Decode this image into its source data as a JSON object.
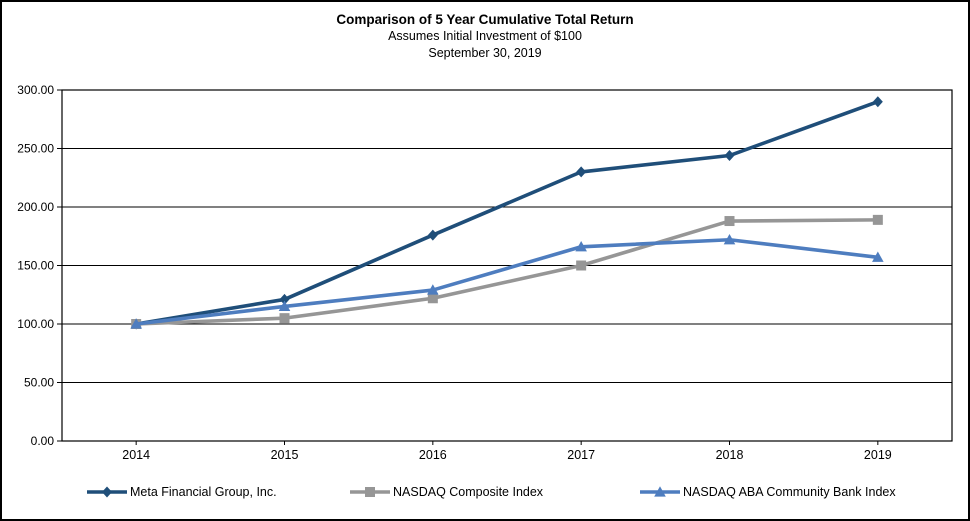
{
  "page": {
    "title": "Comparison of 5 Year Cumulative Total Return",
    "subtitle1": "Assumes Initial Investment of $100",
    "subtitle2": "September 30, 2019"
  },
  "chart_data": {
    "type": "line",
    "title": "Comparison of 5 Year Cumulative Total Return",
    "subtitle": "Assumes Initial Investment of $100",
    "date_label": "September 30, 2019",
    "categories": [
      "2014",
      "2015",
      "2016",
      "2017",
      "2018",
      "2019"
    ],
    "series": [
      {
        "name": "Meta Financial Group, Inc.",
        "marker": "diamond",
        "color": "#1f4e79",
        "values": [
          100,
          121,
          176,
          230,
          244,
          290
        ]
      },
      {
        "name": "NASDAQ Composite Index",
        "marker": "square",
        "color": "#969696",
        "values": [
          100,
          105,
          122,
          150,
          188,
          189
        ]
      },
      {
        "name": "NASDAQ ABA Community Bank Index",
        "marker": "triangle",
        "color": "#4e7dbf",
        "values": [
          100,
          115,
          129,
          166,
          172,
          157
        ]
      }
    ],
    "xlabel": "",
    "ylabel": "",
    "ylim": [
      0,
      300
    ],
    "ytick_step": 50,
    "ytick_format_decimals": 2,
    "ytick_labels": [
      "0.00",
      "50.00",
      "100.00",
      "150.00",
      "200.00",
      "250.00",
      "300.00"
    ],
    "grid": true,
    "grid_color": "#000000",
    "axis_color": "#000000",
    "legend_position": "bottom"
  }
}
